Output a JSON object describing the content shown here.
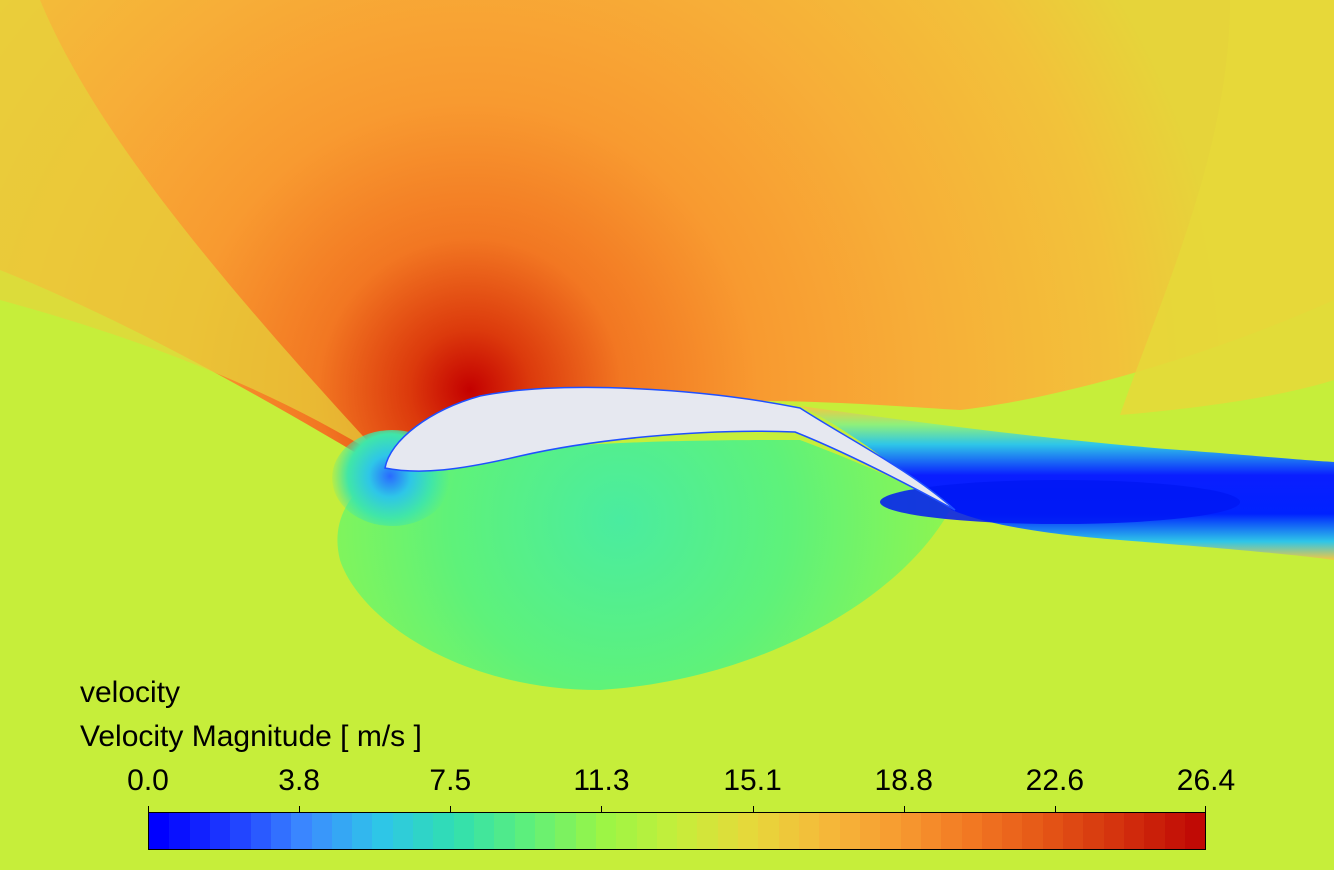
{
  "legend": {
    "variable": "velocity",
    "quantity": "Velocity Magnitude [ m/s ]",
    "ticks": [
      "0.0",
      "3.8",
      "7.5",
      "11.3",
      "15.1",
      "18.8",
      "22.6",
      "26.4"
    ],
    "range": [
      0.0,
      26.4
    ],
    "colormap": [
      "#0000ff",
      "#1f3dff",
      "#3c8cff",
      "#2ec6e8",
      "#30dfb0",
      "#5ff07a",
      "#9bf545",
      "#c6ee3a",
      "#e6d83a",
      "#f5b93a",
      "#f79a30",
      "#f27722",
      "#e45516",
      "#d3300d",
      "#c00a05"
    ]
  },
  "field": {
    "freestream_color": "#c6ee3a",
    "suction_color": "#f7a535",
    "peak_color": "#c80000",
    "pressure_side_color": "#63f562",
    "wake_color": "#0a1eff",
    "airfoil_color": "#e6e8f0"
  }
}
